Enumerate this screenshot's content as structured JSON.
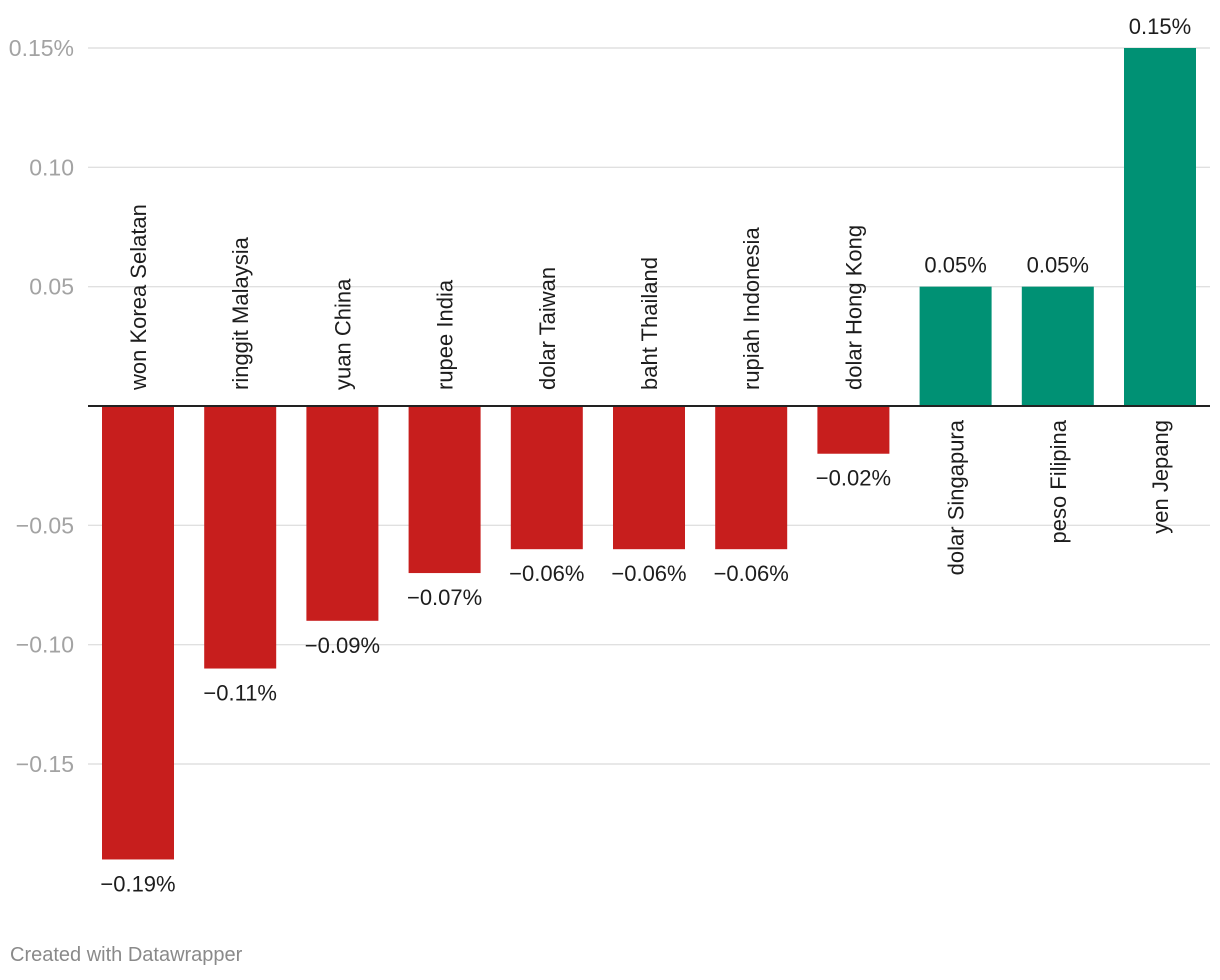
{
  "chart_data": {
    "type": "bar",
    "title": "",
    "xlabel": "",
    "ylabel": "",
    "categories": [
      "won Korea Selatan",
      "ringgit Malaysia",
      "yuan China",
      "rupee India",
      "dolar Taiwan",
      "baht Thailand",
      "rupiah Indonesia",
      "dolar Hong Kong",
      "dolar Singapura",
      "peso Filipina",
      "yen Jepang"
    ],
    "values": [
      -0.19,
      -0.11,
      -0.09,
      -0.07,
      -0.06,
      -0.06,
      -0.06,
      -0.02,
      0.05,
      0.05,
      0.15
    ],
    "value_labels": [
      "−0.19%",
      "−0.11%",
      "−0.09%",
      "−0.07%",
      "−0.06%",
      "−0.06%",
      "−0.06%",
      "−0.02%",
      "0.05%",
      "0.05%",
      "0.15%"
    ],
    "ylim": [
      -0.19,
      0.15
    ],
    "yticks": [
      0.15,
      0.1,
      0.05,
      -0.05,
      -0.1,
      -0.15
    ],
    "ytick_labels": [
      "0.15%",
      "0.10",
      "0.05",
      "−0.05",
      "−0.10",
      "−0.15"
    ],
    "grid": true,
    "colors": {
      "negative": "#c71e1d",
      "positive": "#009174",
      "grid": "#e0e0e0",
      "tick_text": "#a3a3a3",
      "label_text": "#1d1d1d",
      "baseline": "#222222"
    }
  },
  "footer": {
    "credit": "Created with Datawrapper"
  }
}
